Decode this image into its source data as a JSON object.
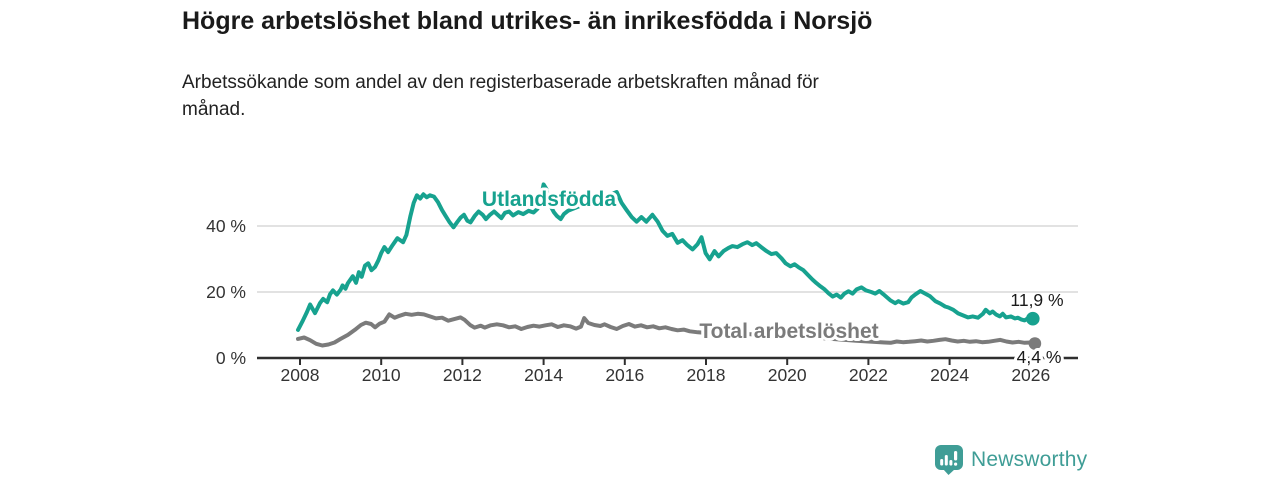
{
  "colors": {
    "series_utlandsfodda": "#17a28f",
    "series_total": "#7b7b7b",
    "axis": "#2f2f2f",
    "grid": "#d8d8d8",
    "value_text": "#1a1a1a",
    "tick_text": "#333333",
    "brand": "#3f9d96",
    "background": "#ffffff"
  },
  "footer": {
    "brand": "Newsworthy",
    "logo_icon": "bar-chart-speech-bubble"
  },
  "chart_data": {
    "type": "line",
    "title": "Högre arbetslöshet bland utrikes- än inrikesfödda i Norsjö",
    "subtitle_lines": [
      "Arbetssökande som andel av den registerbaserade arbetskraften månad för",
      "månad."
    ],
    "xlabel": "",
    "ylabel": "",
    "legend_position": "inline-labels",
    "grid": "horizontal",
    "x_axis": {
      "ticks": [
        2008,
        2010,
        2012,
        2014,
        2016,
        2018,
        2020,
        2022,
        2024,
        2026
      ],
      "min": 2007.9,
      "max": 2026.5
    },
    "y_axis": {
      "ticks": [
        0,
        20,
        40
      ],
      "tick_suffix": " %",
      "ylim": [
        0,
        55
      ]
    },
    "series": [
      {
        "name": "Utlandsfödda",
        "color": "#17a28f",
        "end_label": "11,9 %",
        "end_value": 11.9,
        "points": [
          [
            2007.95,
            8.5
          ],
          [
            2008.07,
            11.3
          ],
          [
            2008.17,
            13.9
          ],
          [
            2008.25,
            16.2
          ],
          [
            2008.37,
            13.6
          ],
          [
            2008.49,
            16.6
          ],
          [
            2008.57,
            17.9
          ],
          [
            2008.67,
            16.9
          ],
          [
            2008.74,
            19.3
          ],
          [
            2008.81,
            20.5
          ],
          [
            2008.91,
            19.2
          ],
          [
            2009.0,
            20.7
          ],
          [
            2009.05,
            22.0
          ],
          [
            2009.12,
            21.0
          ],
          [
            2009.18,
            22.7
          ],
          [
            2009.3,
            24.8
          ],
          [
            2009.38,
            22.8
          ],
          [
            2009.45,
            26.0
          ],
          [
            2009.52,
            24.6
          ],
          [
            2009.6,
            28.0
          ],
          [
            2009.68,
            28.7
          ],
          [
            2009.76,
            26.6
          ],
          [
            2009.85,
            27.6
          ],
          [
            2009.93,
            29.6
          ],
          [
            2010.0,
            31.8
          ],
          [
            2010.08,
            33.6
          ],
          [
            2010.17,
            32.1
          ],
          [
            2010.28,
            34.2
          ],
          [
            2010.4,
            36.3
          ],
          [
            2010.54,
            35.1
          ],
          [
            2010.62,
            37.3
          ],
          [
            2010.72,
            43.0
          ],
          [
            2010.8,
            47.0
          ],
          [
            2010.88,
            49.3
          ],
          [
            2010.96,
            48.3
          ],
          [
            2011.04,
            49.6
          ],
          [
            2011.12,
            48.7
          ],
          [
            2011.2,
            49.3
          ],
          [
            2011.3,
            48.9
          ],
          [
            2011.4,
            47.2
          ],
          [
            2011.5,
            44.8
          ],
          [
            2011.58,
            43.2
          ],
          [
            2011.68,
            41.2
          ],
          [
            2011.78,
            39.6
          ],
          [
            2011.88,
            41.3
          ],
          [
            2011.96,
            42.6
          ],
          [
            2012.04,
            43.4
          ],
          [
            2012.12,
            41.6
          ],
          [
            2012.2,
            41.1
          ],
          [
            2012.3,
            43.0
          ],
          [
            2012.4,
            44.4
          ],
          [
            2012.5,
            43.4
          ],
          [
            2012.58,
            42.1
          ],
          [
            2012.68,
            43.4
          ],
          [
            2012.78,
            44.4
          ],
          [
            2012.88,
            43.3
          ],
          [
            2012.96,
            42.4
          ],
          [
            2013.05,
            44.0
          ],
          [
            2013.15,
            44.4
          ],
          [
            2013.25,
            43.2
          ],
          [
            2013.38,
            44.2
          ],
          [
            2013.5,
            43.6
          ],
          [
            2013.63,
            44.6
          ],
          [
            2013.75,
            44.1
          ],
          [
            2013.85,
            45.2
          ],
          [
            2013.93,
            48.5
          ],
          [
            2014.0,
            52.6
          ],
          [
            2014.07,
            51.2
          ],
          [
            2014.15,
            46.5
          ],
          [
            2014.25,
            44.2
          ],
          [
            2014.33,
            43.0
          ],
          [
            2014.42,
            42.1
          ],
          [
            2014.5,
            43.6
          ],
          [
            2014.6,
            44.6
          ],
          [
            2014.7,
            45.1
          ],
          [
            2014.8,
            45.6
          ],
          [
            2014.9,
            46.1
          ],
          [
            2015.0,
            46.6
          ],
          [
            2015.15,
            47.2
          ],
          [
            2015.3,
            47.8
          ],
          [
            2015.45,
            48.3
          ],
          [
            2015.6,
            49.2
          ],
          [
            2015.72,
            49.9
          ],
          [
            2015.8,
            50.3
          ],
          [
            2015.92,
            47.0
          ],
          [
            2016.04,
            44.9
          ],
          [
            2016.17,
            42.7
          ],
          [
            2016.29,
            41.3
          ],
          [
            2016.41,
            42.7
          ],
          [
            2016.53,
            41.3
          ],
          [
            2016.68,
            43.4
          ],
          [
            2016.81,
            41.3
          ],
          [
            2016.93,
            38.5
          ],
          [
            2017.05,
            37.0
          ],
          [
            2017.17,
            37.6
          ],
          [
            2017.3,
            34.9
          ],
          [
            2017.42,
            35.7
          ],
          [
            2017.54,
            34.2
          ],
          [
            2017.67,
            32.9
          ],
          [
            2017.79,
            34.5
          ],
          [
            2017.89,
            36.6
          ],
          [
            2017.99,
            31.8
          ],
          [
            2018.09,
            29.9
          ],
          [
            2018.21,
            32.4
          ],
          [
            2018.31,
            30.8
          ],
          [
            2018.43,
            32.4
          ],
          [
            2018.55,
            33.3
          ],
          [
            2018.65,
            33.9
          ],
          [
            2018.77,
            33.6
          ],
          [
            2018.9,
            34.5
          ],
          [
            2019.02,
            35.1
          ],
          [
            2019.14,
            34.2
          ],
          [
            2019.24,
            34.8
          ],
          [
            2019.36,
            33.6
          ],
          [
            2019.49,
            32.4
          ],
          [
            2019.61,
            31.5
          ],
          [
            2019.73,
            31.8
          ],
          [
            2019.86,
            30.2
          ],
          [
            2019.96,
            28.7
          ],
          [
            2020.08,
            27.8
          ],
          [
            2020.18,
            28.4
          ],
          [
            2020.28,
            27.5
          ],
          [
            2020.4,
            26.6
          ],
          [
            2020.5,
            25.3
          ],
          [
            2020.62,
            23.8
          ],
          [
            2020.72,
            22.7
          ],
          [
            2020.82,
            21.7
          ],
          [
            2020.92,
            20.8
          ],
          [
            2021.02,
            19.6
          ],
          [
            2021.12,
            18.6
          ],
          [
            2021.22,
            19.2
          ],
          [
            2021.32,
            18.3
          ],
          [
            2021.41,
            19.5
          ],
          [
            2021.51,
            20.2
          ],
          [
            2021.61,
            19.5
          ],
          [
            2021.71,
            20.8
          ],
          [
            2021.83,
            21.4
          ],
          [
            2021.94,
            20.5
          ],
          [
            2022.07,
            20.0
          ],
          [
            2022.17,
            19.5
          ],
          [
            2022.27,
            20.3
          ],
          [
            2022.37,
            19.3
          ],
          [
            2022.54,
            17.5
          ],
          [
            2022.66,
            16.6
          ],
          [
            2022.74,
            17.2
          ],
          [
            2022.86,
            16.5
          ],
          [
            2022.98,
            16.9
          ],
          [
            2023.06,
            18.3
          ],
          [
            2023.16,
            19.3
          ],
          [
            2023.28,
            20.3
          ],
          [
            2023.4,
            19.5
          ],
          [
            2023.52,
            18.7
          ],
          [
            2023.65,
            17.2
          ],
          [
            2023.77,
            16.5
          ],
          [
            2023.89,
            15.6
          ],
          [
            2023.97,
            15.3
          ],
          [
            2024.09,
            14.6
          ],
          [
            2024.21,
            13.5
          ],
          [
            2024.33,
            12.9
          ],
          [
            2024.45,
            12.3
          ],
          [
            2024.57,
            12.6
          ],
          [
            2024.7,
            12.2
          ],
          [
            2024.82,
            13.4
          ],
          [
            2024.89,
            14.6
          ],
          [
            2024.99,
            13.5
          ],
          [
            2025.06,
            14.1
          ],
          [
            2025.14,
            13.2
          ],
          [
            2025.24,
            12.6
          ],
          [
            2025.31,
            13.4
          ],
          [
            2025.39,
            12.3
          ],
          [
            2025.51,
            12.6
          ],
          [
            2025.61,
            12.0
          ],
          [
            2025.68,
            12.2
          ],
          [
            2025.76,
            11.7
          ],
          [
            2025.85,
            11.4
          ],
          [
            2025.92,
            12.0
          ],
          [
            2026.05,
            11.9
          ]
        ]
      },
      {
        "name": "Total arbetslöshet",
        "color": "#7b7b7b",
        "end_label": "4,4 %",
        "end_value": 4.4,
        "points": [
          [
            2007.95,
            5.8
          ],
          [
            2008.1,
            6.2
          ],
          [
            2008.25,
            5.4
          ],
          [
            2008.4,
            4.3
          ],
          [
            2008.55,
            3.8
          ],
          [
            2008.7,
            4.1
          ],
          [
            2008.85,
            4.7
          ],
          [
            2009.0,
            5.8
          ],
          [
            2009.18,
            7.0
          ],
          [
            2009.35,
            8.5
          ],
          [
            2009.5,
            10.0
          ],
          [
            2009.62,
            10.7
          ],
          [
            2009.75,
            10.3
          ],
          [
            2009.85,
            9.3
          ],
          [
            2009.96,
            10.4
          ],
          [
            2010.08,
            11.0
          ],
          [
            2010.2,
            13.2
          ],
          [
            2010.33,
            12.2
          ],
          [
            2010.45,
            12.8
          ],
          [
            2010.6,
            13.4
          ],
          [
            2010.75,
            13.1
          ],
          [
            2010.9,
            13.4
          ],
          [
            2011.05,
            13.2
          ],
          [
            2011.2,
            12.6
          ],
          [
            2011.35,
            12.0
          ],
          [
            2011.5,
            12.2
          ],
          [
            2011.65,
            11.3
          ],
          [
            2011.8,
            11.8
          ],
          [
            2011.95,
            12.3
          ],
          [
            2012.05,
            11.6
          ],
          [
            2012.2,
            9.9
          ],
          [
            2012.3,
            9.2
          ],
          [
            2012.45,
            9.8
          ],
          [
            2012.55,
            9.2
          ],
          [
            2012.7,
            9.9
          ],
          [
            2012.85,
            10.2
          ],
          [
            2013.0,
            9.9
          ],
          [
            2013.15,
            9.3
          ],
          [
            2013.3,
            9.6
          ],
          [
            2013.45,
            8.8
          ],
          [
            2013.6,
            9.4
          ],
          [
            2013.75,
            9.8
          ],
          [
            2013.9,
            9.5
          ],
          [
            2014.05,
            9.9
          ],
          [
            2014.2,
            10.2
          ],
          [
            2014.35,
            9.4
          ],
          [
            2014.5,
            9.9
          ],
          [
            2014.65,
            9.6
          ],
          [
            2014.8,
            8.9
          ],
          [
            2014.92,
            9.5
          ],
          [
            2015.0,
            12.1
          ],
          [
            2015.1,
            10.6
          ],
          [
            2015.25,
            10.0
          ],
          [
            2015.4,
            9.7
          ],
          [
            2015.5,
            10.2
          ],
          [
            2015.65,
            9.4
          ],
          [
            2015.8,
            8.8
          ],
          [
            2015.95,
            9.7
          ],
          [
            2016.1,
            10.3
          ],
          [
            2016.25,
            9.5
          ],
          [
            2016.4,
            9.9
          ],
          [
            2016.55,
            9.3
          ],
          [
            2016.7,
            9.6
          ],
          [
            2016.85,
            9.0
          ],
          [
            2017.0,
            9.3
          ],
          [
            2017.15,
            8.8
          ],
          [
            2017.3,
            8.4
          ],
          [
            2017.45,
            8.6
          ],
          [
            2017.6,
            8.1
          ],
          [
            2017.8,
            7.8
          ],
          [
            2018.1,
            7.5
          ],
          [
            2018.5,
            7.2
          ],
          [
            2018.9,
            7.4
          ],
          [
            2019.3,
            7.0
          ],
          [
            2019.7,
            6.8
          ],
          [
            2020.1,
            7.1
          ],
          [
            2020.5,
            6.5
          ],
          [
            2020.9,
            6.0
          ],
          [
            2021.3,
            5.6
          ],
          [
            2021.7,
            5.2
          ],
          [
            2022.1,
            4.9
          ],
          [
            2022.4,
            4.7
          ],
          [
            2022.55,
            4.6
          ],
          [
            2022.7,
            5.0
          ],
          [
            2022.85,
            4.8
          ],
          [
            2023.0,
            4.9
          ],
          [
            2023.15,
            5.1
          ],
          [
            2023.3,
            5.3
          ],
          [
            2023.45,
            5.0
          ],
          [
            2023.6,
            5.2
          ],
          [
            2023.75,
            5.5
          ],
          [
            2023.9,
            5.7
          ],
          [
            2024.05,
            5.3
          ],
          [
            2024.2,
            5.0
          ],
          [
            2024.35,
            5.2
          ],
          [
            2024.5,
            4.9
          ],
          [
            2024.65,
            5.1
          ],
          [
            2024.8,
            4.8
          ],
          [
            2024.95,
            4.9
          ],
          [
            2025.1,
            5.2
          ],
          [
            2025.25,
            5.5
          ],
          [
            2025.4,
            5.0
          ],
          [
            2025.55,
            4.7
          ],
          [
            2025.7,
            4.9
          ],
          [
            2025.85,
            4.6
          ],
          [
            2026.0,
            4.7
          ],
          [
            2026.1,
            4.4
          ]
        ]
      }
    ]
  }
}
